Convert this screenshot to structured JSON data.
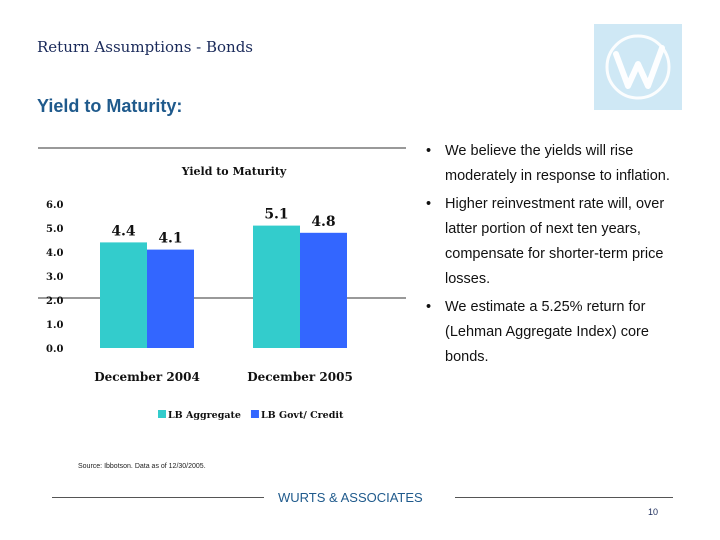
{
  "slide": {
    "title": "Return Assumptions - Bonds",
    "heading": "Yield to Maturity:",
    "source": "Source: Ibbotson.  Data as of 12/30/2005.",
    "footer": "WURTS & ASSOCIATES",
    "page_number": "10"
  },
  "bullets": [
    "We believe the yields will rise moderately in response to inflation.",
    "Higher reinvestment rate will, over latter portion of next ten years, compensate for shorter-term price losses.",
    "We estimate a 5.25% return for (Lehman Aggregate Index) core bonds."
  ],
  "chart_data": {
    "type": "bar",
    "title": "Yield to Maturity",
    "categories": [
      "December 2004",
      "December 2005"
    ],
    "series": [
      {
        "name": "LB Aggregate",
        "color": "#33cccc",
        "values": [
          4.4,
          5.1
        ]
      },
      {
        "name": "LB Govt/ Credit",
        "color": "#3366ff",
        "values": [
          4.1,
          4.8
        ]
      }
    ],
    "data_labels": [
      [
        "4.4",
        "4.1"
      ],
      [
        "5.1",
        "4.8"
      ]
    ],
    "yticks": [
      "0.0",
      "1.0",
      "2.0",
      "3.0",
      "4.0",
      "5.0",
      "6.0"
    ],
    "ylim": [
      0,
      6
    ],
    "grid": false,
    "legend": "bottom"
  },
  "logo": {
    "icon": "company-logo-icon",
    "color": "#cfe8f5"
  }
}
